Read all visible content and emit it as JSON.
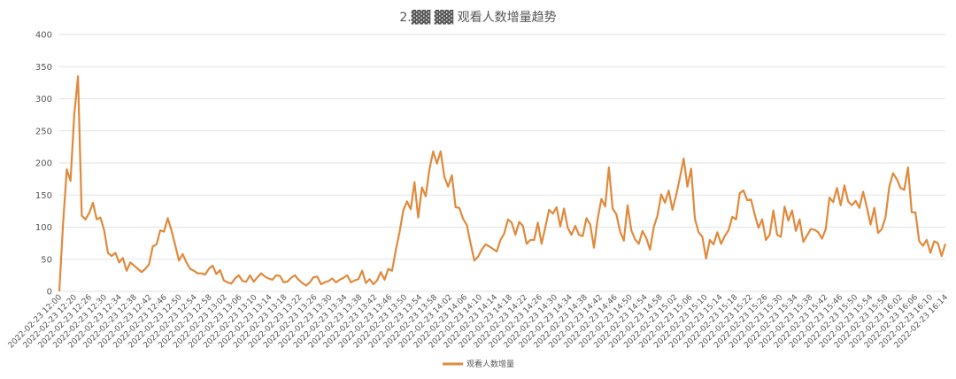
{
  "chart_data": {
    "type": "line",
    "title": "2.▓▓  ▓▓ 观看人数增量趋势",
    "xlabel": "",
    "ylabel": "",
    "ylim": [
      0,
      400
    ],
    "yticks": [
      0,
      50,
      100,
      150,
      200,
      250,
      300,
      350,
      400
    ],
    "grid": true,
    "legend_position": "bottom-center",
    "x_labels": [
      "2022-02-23 12:00",
      "2022-02-23 12:20",
      "2022-02-23 12:26",
      "2022-02-23 12:30",
      "2022-02-23 12:34",
      "2022-02-23 12:38",
      "2022-02-23 12:42",
      "2022-02-23 12:46",
      "2022-02-23 12:50",
      "2022-02-23 12:54",
      "2022-02-23 12:58",
      "2022-02-23 13:02",
      "2022-02-23 13:06",
      "2022-02-23 13:10",
      "2022-02-23 13:14",
      "2022-02-23 13:18",
      "2022-02-23 13:22",
      "2022-02-23 13:26",
      "2022-02-23 13:30",
      "2022-02-23 13:34",
      "2022-02-23 13:38",
      "2022-02-23 13:42",
      "2022-02-23 13:46",
      "2022-02-23 13:50",
      "2022-02-23 13:54",
      "2022-02-23 13:58",
      "2022-02-23 14:02",
      "2022-02-23 14:06",
      "2022-02-23 14:10",
      "2022-02-23 14:14",
      "2022-02-23 14:18",
      "2022-02-23 14:22",
      "2022-02-23 14:26",
      "2022-02-23 14:30",
      "2022-02-23 14:34",
      "2022-02-23 14:38",
      "2022-02-23 14:42",
      "2022-02-23 14:46",
      "2022-02-23 14:50",
      "2022-02-23 14:54",
      "2022-02-23 14:58",
      "2022-02-23 15:02",
      "2022-02-23 15:06",
      "2022-02-23 15:10",
      "2022-02-23 15:14",
      "2022-02-23 15:18",
      "2022-02-23 15:22",
      "2022-02-23 15:26",
      "2022-02-23 15:30",
      "2022-02-23 15:34",
      "2022-02-23 15:38",
      "2022-02-23 15:42",
      "2022-02-23 15:46",
      "2022-02-23 15:50",
      "2022-02-23 15:54",
      "2022-02-23 15:58",
      "2022-02-23 16:02",
      "2022-02-23 16:06",
      "2022-02-23 16:10",
      "2022-02-23 16:14"
    ],
    "series": [
      {
        "name": "观看人数增量",
        "color": "#e08a3c",
        "values": [
          0,
          105,
          190,
          172,
          275,
          335,
          118,
          112,
          122,
          138,
          112,
          115,
          95,
          60,
          55,
          60,
          45,
          52,
          32,
          45,
          40,
          35,
          30,
          35,
          42,
          70,
          73,
          95,
          93,
          114,
          95,
          72,
          48,
          58,
          45,
          35,
          32,
          28,
          28,
          26,
          35,
          40,
          27,
          33,
          17,
          14,
          12,
          20,
          25,
          16,
          15,
          25,
          15,
          22,
          28,
          23,
          20,
          18,
          25,
          24,
          14,
          15,
          21,
          25,
          18,
          13,
          9,
          14,
          22,
          23,
          11,
          14,
          16,
          20,
          14,
          18,
          21,
          25,
          14,
          17,
          19,
          32,
          13,
          19,
          11,
          17,
          30,
          18,
          35,
          32,
          64,
          92,
          126,
          140,
          128,
          170,
          115,
          162,
          148,
          190,
          218,
          199,
          218,
          178,
          163,
          181,
          131,
          130,
          113,
          103,
          75,
          48,
          54,
          65,
          73,
          70,
          66,
          62,
          80,
          90,
          112,
          107,
          88,
          108,
          102,
          74,
          80,
          80,
          107,
          74,
          100,
          127,
          121,
          131,
          101,
          129,
          99,
          88,
          102,
          88,
          86,
          114,
          104,
          68,
          113,
          144,
          132,
          193,
          129,
          120,
          93,
          79,
          134,
          95,
          81,
          74,
          94,
          83,
          65,
          100,
          118,
          151,
          138,
          157,
          127,
          150,
          177,
          207,
          163,
          191,
          113,
          92,
          85,
          51,
          80,
          73,
          92,
          74,
          86,
          95,
          116,
          112,
          153,
          157,
          142,
          143,
          120,
          99,
          112,
          80,
          88,
          126,
          88,
          85,
          132,
          110,
          126,
          94,
          112,
          77,
          87,
          97,
          96,
          92,
          82,
          97,
          146,
          139,
          161,
          134,
          165,
          140,
          134,
          141,
          130,
          155,
          131,
          104,
          130,
          91,
          97,
          116,
          163,
          184,
          175,
          161,
          158,
          193,
          123,
          123,
          78,
          71,
          80,
          60,
          78,
          75,
          55,
          74
        ]
      }
    ]
  }
}
